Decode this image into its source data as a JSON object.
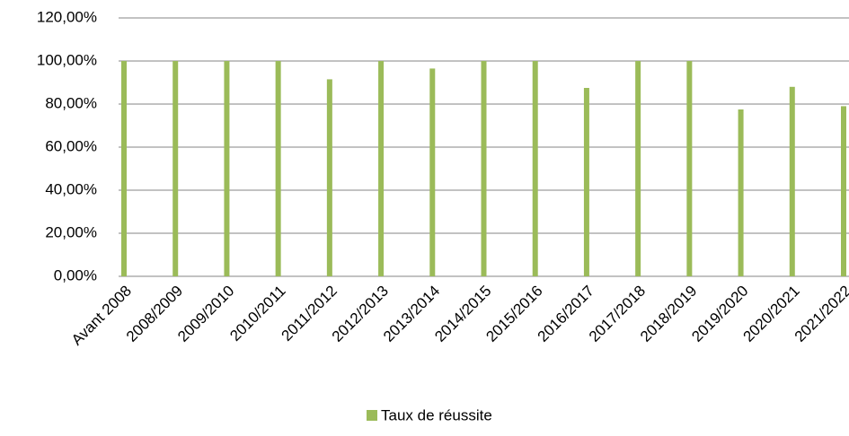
{
  "chart_data": {
    "type": "bar",
    "categories": [
      "Avant 2008",
      "2008/2009",
      "2009/2010",
      "2010/2011",
      "2011/2012",
      "2012/2013",
      "2013/2014",
      "2014/2015",
      "2015/2016",
      "2016/2017",
      "2017/2018",
      "2018/2019",
      "2019/2020",
      "2020/2021",
      "2021/2022"
    ],
    "series": [
      {
        "name": "Taux de réussite",
        "color": "#9bbb59",
        "values": [
          100,
          100,
          100,
          100,
          91.5,
          100,
          96.5,
          100,
          100,
          87.5,
          100,
          100,
          77.5,
          88,
          79
        ]
      }
    ],
    "ylim": [
      0,
      120
    ],
    "yticks": [
      {
        "value": 0,
        "label": "0,00%"
      },
      {
        "value": 20,
        "label": "20,00%"
      },
      {
        "value": 40,
        "label": "40,00%"
      },
      {
        "value": 60,
        "label": "60,00%"
      },
      {
        "value": 80,
        "label": "80,00%"
      },
      {
        "value": 100,
        "label": "100,00%"
      },
      {
        "value": 120,
        "label": "120,00%"
      }
    ],
    "grid": true,
    "legend": "bottom"
  }
}
